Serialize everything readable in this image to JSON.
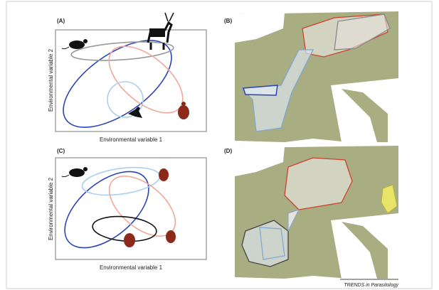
{
  "panels": [
    {
      "label": "(A)",
      "x_axis_label": "Environmental variable 1",
      "y_axis_label": "Environmental variable 2"
    },
    {
      "label": "(B)"
    },
    {
      "label": "(C)",
      "x_axis_label": "Environmental variable 1",
      "y_axis_label": "Environmental variable 2"
    },
    {
      "label": "(D)"
    }
  ],
  "footer": {
    "credit": "TRENDS in Parasitology"
  }
}
